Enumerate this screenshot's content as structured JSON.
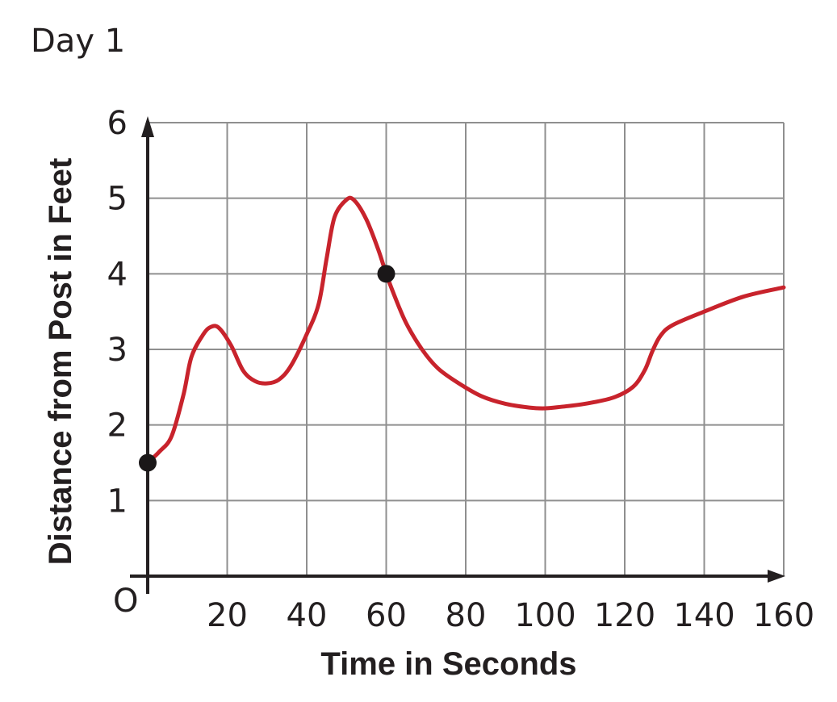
{
  "chart_data": {
    "type": "line",
    "title": "Day 1",
    "xlabel": "Time in Seconds",
    "ylabel": "Distance from  Post in Feet",
    "origin_label": "O",
    "xlim": [
      0,
      160
    ],
    "ylim": [
      0,
      6
    ],
    "x_ticks": [
      20,
      40,
      60,
      80,
      100,
      120,
      140,
      160
    ],
    "y_ticks": [
      1,
      2,
      3,
      4,
      5,
      6
    ],
    "grid": true,
    "legend": "none",
    "series": [
      {
        "color": "#c8232c",
        "x": [
          0,
          3,
          6,
          9,
          11,
          14,
          16,
          18,
          21,
          24,
          27,
          30,
          33,
          36,
          40,
          43,
          45,
          47,
          50,
          52,
          55,
          58,
          60,
          62,
          65,
          69,
          73,
          78,
          84,
          90,
          96,
          100,
          104,
          110,
          117,
          122,
          125,
          127,
          129,
          132,
          140,
          150,
          160
        ],
        "y": [
          1.5,
          1.65,
          1.85,
          2.4,
          2.9,
          3.2,
          3.3,
          3.28,
          3.05,
          2.72,
          2.58,
          2.55,
          2.6,
          2.78,
          3.2,
          3.6,
          4.2,
          4.75,
          4.98,
          4.97,
          4.72,
          4.32,
          4.0,
          3.72,
          3.35,
          3.0,
          2.75,
          2.56,
          2.38,
          2.28,
          2.23,
          2.22,
          2.24,
          2.28,
          2.36,
          2.5,
          2.72,
          2.98,
          3.18,
          3.32,
          3.5,
          3.7,
          3.82
        ]
      }
    ],
    "points": [
      {
        "x": 0,
        "y": 1.5
      },
      {
        "x": 60,
        "y": 4
      }
    ]
  }
}
